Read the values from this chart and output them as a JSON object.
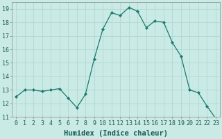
{
  "x": [
    0,
    1,
    2,
    3,
    4,
    5,
    6,
    7,
    8,
    9,
    10,
    11,
    12,
    13,
    14,
    15,
    16,
    17,
    18,
    19,
    20,
    21,
    22,
    23
  ],
  "y": [
    12.5,
    13.0,
    13.0,
    12.9,
    13.0,
    13.1,
    12.4,
    11.7,
    12.7,
    15.3,
    17.5,
    18.7,
    18.5,
    19.1,
    18.8,
    17.6,
    18.1,
    18.0,
    16.5,
    15.5,
    13.0,
    12.8,
    11.8,
    10.9
  ],
  "line_color": "#1a7a6e",
  "marker": "D",
  "marker_size": 2.0,
  "bg_color": "#caeae5",
  "grid_color": "#b0d8d3",
  "xlabel": "Humidex (Indice chaleur)",
  "ylim": [
    11,
    19.5
  ],
  "xlim": [
    -0.5,
    23.5
  ],
  "yticks": [
    11,
    12,
    13,
    14,
    15,
    16,
    17,
    18,
    19
  ],
  "xticks": [
    0,
    1,
    2,
    3,
    4,
    5,
    6,
    7,
    8,
    9,
    10,
    11,
    12,
    13,
    14,
    15,
    16,
    17,
    18,
    19,
    20,
    21,
    22,
    23
  ],
  "tick_fontsize": 6.0,
  "xlabel_fontsize": 7.5,
  "linewidth": 0.9
}
